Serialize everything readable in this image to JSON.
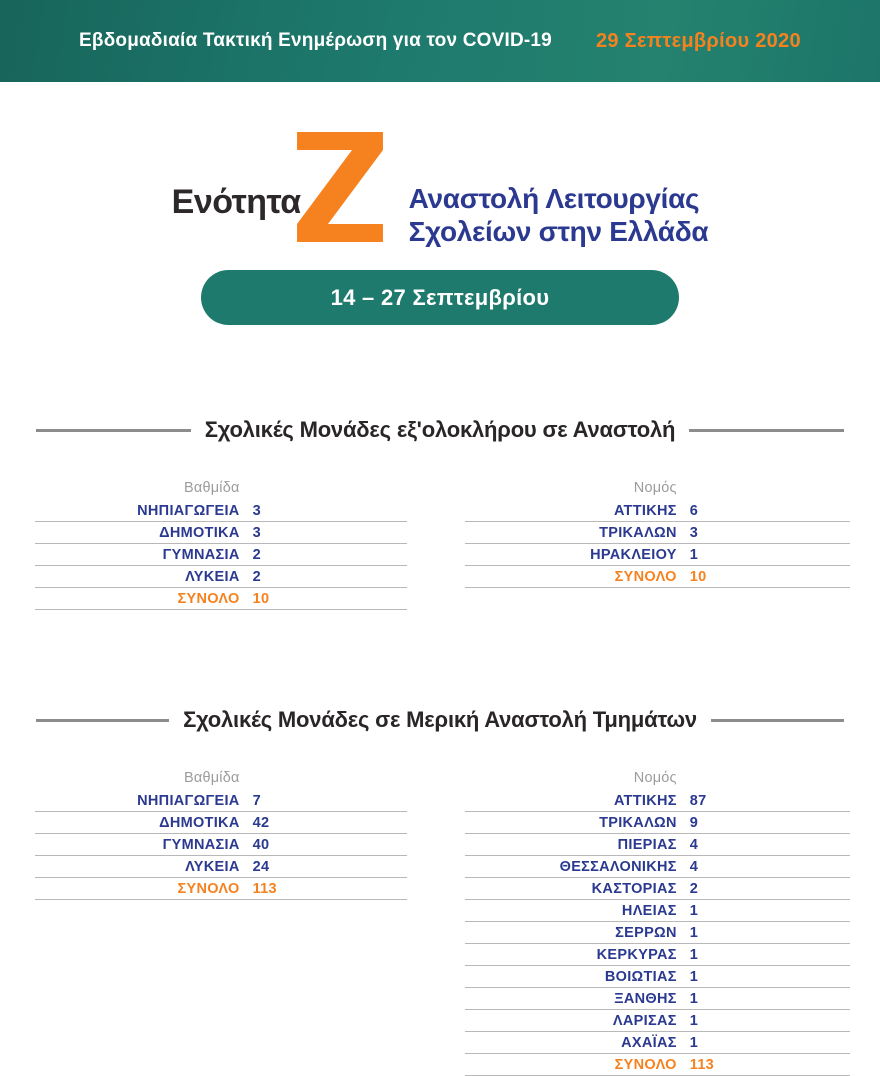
{
  "header": {
    "title": "Εβδομαδιαία Τακτική Ενημέρωση για τον COVID-19",
    "date": "29 Σεπτεμβρίου 2020"
  },
  "hero": {
    "section_label": "Ενότητα",
    "section_letter": "Z",
    "title_line1": "Αναστολή Λειτουργίας",
    "title_line2": "Σχολείων στην Ελλάδα"
  },
  "period_badge": "14 – 27 Σεπτεμβρίου",
  "colors": {
    "teal": "#1E7A6D",
    "orange": "#F5821F",
    "navy": "#2B3990",
    "rule_gray": "#8C8C8C"
  },
  "sections": [
    {
      "title": "Σχολικές Μονάδες εξ'ολοκλήρου σε Αναστολή",
      "tables": [
        {
          "column_header": "Βαθμίδα",
          "rows": [
            {
              "label": "ΝΗΠΙΑΓΩΓΕΙΑ",
              "value": "3"
            },
            {
              "label": "ΔΗΜΟΤΙΚΑ",
              "value": "3"
            },
            {
              "label": "ΓΥΜΝΑΣΙΑ",
              "value": "2"
            },
            {
              "label": "ΛΥΚΕΙΑ",
              "value": "2"
            },
            {
              "label": "ΣΥΝΟΛΟ",
              "value": "10",
              "total": true
            }
          ]
        },
        {
          "column_header": "Νομός",
          "rows": [
            {
              "label": "ΑΤΤΙΚΗΣ",
              "value": "6"
            },
            {
              "label": "ΤΡΙΚΑΛΩΝ",
              "value": "3"
            },
            {
              "label": "ΗΡΑΚΛΕΙΟΥ",
              "value": "1"
            },
            {
              "label": "ΣΥΝΟΛΟ",
              "value": "10",
              "total": true
            }
          ]
        }
      ]
    },
    {
      "title": "Σχολικές Μονάδες σε Μερική Αναστολή Τμημάτων",
      "tables": [
        {
          "column_header": "Βαθμίδα",
          "rows": [
            {
              "label": "ΝΗΠΙΑΓΩΓΕΙΑ",
              "value": "7"
            },
            {
              "label": "ΔΗΜΟΤΙΚΑ",
              "value": "42"
            },
            {
              "label": "ΓΥΜΝΑΣΙΑ",
              "value": "40"
            },
            {
              "label": "ΛΥΚΕΙΑ",
              "value": "24"
            },
            {
              "label": "ΣΥΝΟΛΟ",
              "value": "113",
              "total": true
            }
          ]
        },
        {
          "column_header": "Νομός",
          "rows": [
            {
              "label": "ΑΤΤΙΚΗΣ",
              "value": "87"
            },
            {
              "label": "ΤΡΙΚΑΛΩΝ",
              "value": "9"
            },
            {
              "label": "ΠΙΕΡΙΑΣ",
              "value": "4"
            },
            {
              "label": "ΘΕΣΣΑΛΟΝΙΚΗΣ",
              "value": "4"
            },
            {
              "label": "ΚΑΣΤΟΡΙΑΣ",
              "value": "2"
            },
            {
              "label": "ΗΛΕΙΑΣ",
              "value": "1"
            },
            {
              "label": "ΣΕΡΡΩΝ",
              "value": "1"
            },
            {
              "label": "ΚΕΡΚΥΡΑΣ",
              "value": "1"
            },
            {
              "label": "ΒΟΙΩΤΙΑΣ",
              "value": "1"
            },
            {
              "label": "ΞΑΝΘΗΣ",
              "value": "1"
            },
            {
              "label": "ΛΑΡΙΣΑΣ",
              "value": "1"
            },
            {
              "label": "ΑΧΑΪΑΣ",
              "value": "1"
            },
            {
              "label": "ΣΥΝΟΛΟ",
              "value": "113",
              "total": true
            }
          ]
        }
      ]
    }
  ]
}
